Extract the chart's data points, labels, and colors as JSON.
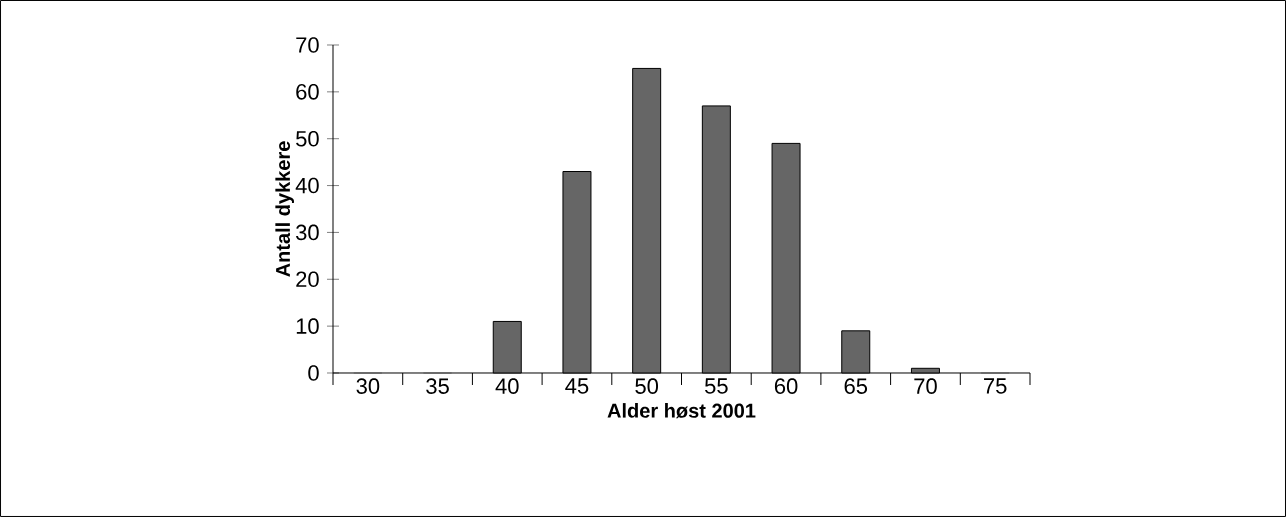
{
  "chart_data": {
    "type": "bar",
    "xlabel": "Alder høst 2001",
    "ylabel": "Antall dykkere",
    "categories": [
      "30",
      "35",
      "40",
      "45",
      "50",
      "55",
      "60",
      "65",
      "70",
      "75"
    ],
    "values": [
      0,
      0,
      11,
      43,
      65,
      57,
      49,
      9,
      1,
      0
    ],
    "color": "#666666",
    "ylim": [
      0,
      70
    ],
    "yticks": [
      0,
      10,
      20,
      30,
      40,
      50,
      60,
      70
    ]
  }
}
